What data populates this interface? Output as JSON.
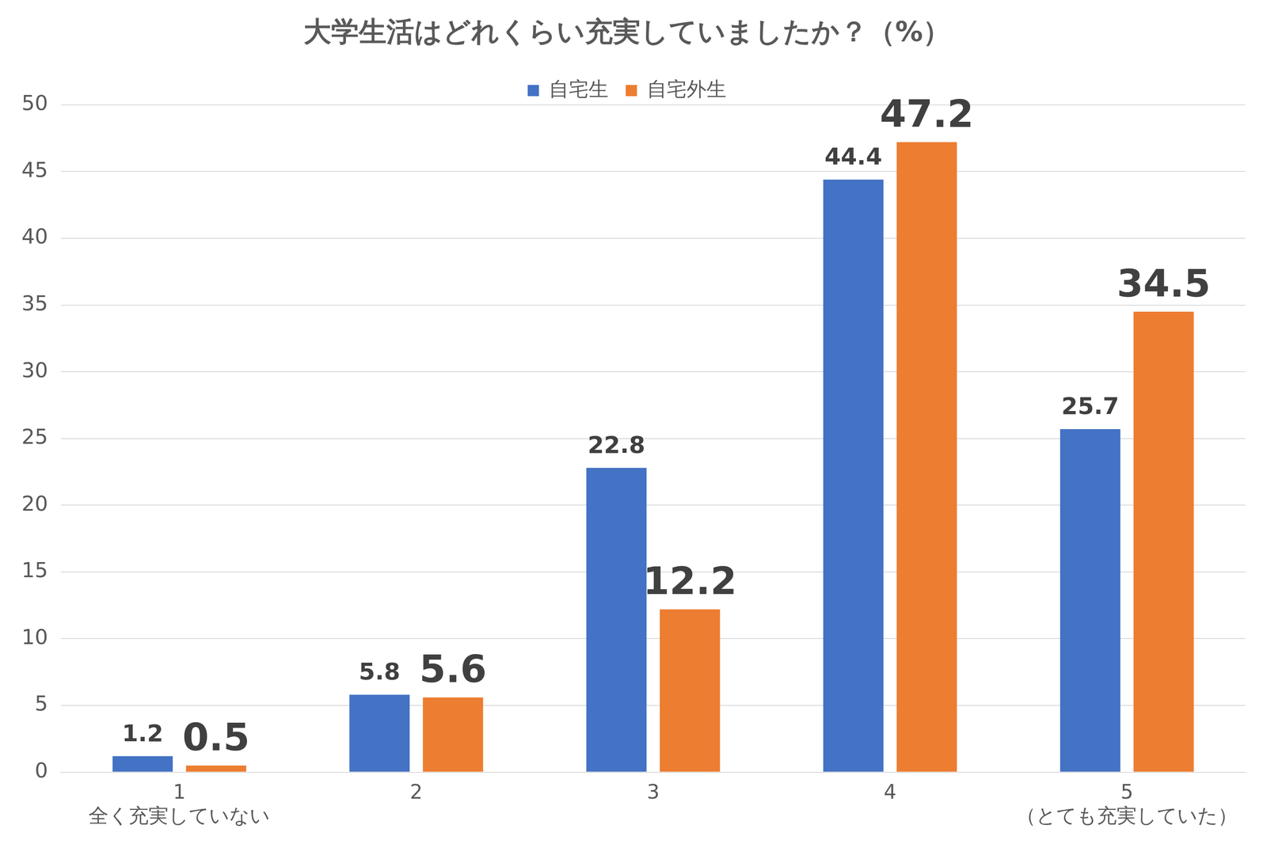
{
  "chart_data": {
    "type": "bar",
    "title": "大学生活はどれくらい充実していましたか？（%）",
    "categories": [
      "1\n全く充実していない",
      "2",
      "3",
      "4",
      "5\n（とても充実していた）"
    ],
    "series": [
      {
        "name": "自宅生",
        "color": "#4472c4",
        "values": [
          1.2,
          5.8,
          22.8,
          44.4,
          25.7
        ]
      },
      {
        "name": "自宅外生",
        "color": "#ed7d31",
        "values": [
          0.5,
          5.6,
          12.2,
          47.2,
          34.5
        ]
      }
    ],
    "ylim": [
      0,
      50
    ],
    "yticks": [
      0,
      5,
      10,
      15,
      20,
      25,
      30,
      35,
      40,
      45,
      50
    ],
    "grid": true,
    "legend": "top",
    "data_labels": true
  }
}
